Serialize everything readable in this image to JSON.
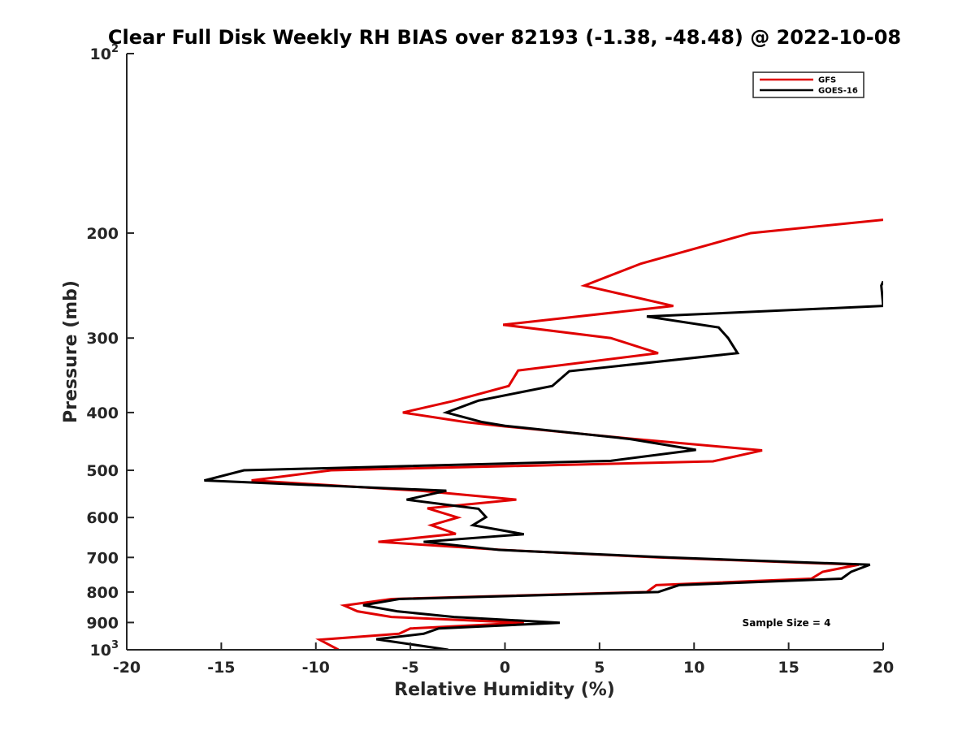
{
  "chart_data": {
    "type": "line",
    "title": "Clear Full Disk Weekly RH BIAS over 82193 (-1.38, -48.48) @ 2022-10-08",
    "xlabel": "Relative Humidity (%)",
    "ylabel": "Pressure (mb)",
    "xlim": [
      -20,
      20
    ],
    "ylim": [
      100,
      1000
    ],
    "y_scale": "log",
    "y_reversed": true,
    "x_ticks": [
      "-20",
      "-15",
      "-10",
      "-5",
      "0",
      "5",
      "10",
      "15",
      "20"
    ],
    "y_ticks": [
      {
        "value": 100,
        "base": "10",
        "exp": "2"
      },
      {
        "value": 200,
        "label": "200"
      },
      {
        "value": 300,
        "label": "300"
      },
      {
        "value": 400,
        "label": "400"
      },
      {
        "value": 500,
        "label": "500"
      },
      {
        "value": 600,
        "label": "600"
      },
      {
        "value": 700,
        "label": "700"
      },
      {
        "value": 800,
        "label": "800"
      },
      {
        "value": 900,
        "label": "900"
      },
      {
        "value": 1000,
        "base": "10",
        "exp": "3"
      }
    ],
    "grid": false,
    "legend_position": "top-right",
    "annotation": "Sample Size = 4",
    "series": [
      {
        "name": "GFS",
        "color": "#e00000",
        "points": [
          [
            20.0,
            190
          ],
          [
            13.0,
            200
          ],
          [
            7.2,
            225
          ],
          [
            4.2,
            245
          ],
          [
            8.9,
            265
          ],
          [
            -0.1,
            285
          ],
          [
            5.6,
            300
          ],
          [
            8.1,
            318
          ],
          [
            0.7,
            340
          ],
          [
            0.2,
            361
          ],
          [
            -2.8,
            383
          ],
          [
            -5.4,
            400
          ],
          [
            -2.1,
            415
          ],
          [
            0.0,
            422
          ],
          [
            6.5,
            442
          ],
          [
            13.6,
            463
          ],
          [
            11.0,
            483
          ],
          [
            -9.2,
            500
          ],
          [
            -13.4,
            520
          ],
          [
            -4.5,
            541
          ],
          [
            0.6,
            560
          ],
          [
            -4.1,
            579
          ],
          [
            -2.5,
            600
          ],
          [
            -3.9,
            618
          ],
          [
            -2.6,
            639
          ],
          [
            -6.7,
            659
          ],
          [
            -0.1,
            680
          ],
          [
            8.1,
            700
          ],
          [
            18.7,
            720
          ],
          [
            16.8,
            740
          ],
          [
            16.2,
            760
          ],
          [
            8.0,
            779
          ],
          [
            7.5,
            800
          ],
          [
            -6.0,
            822
          ],
          [
            -8.5,
            843
          ],
          [
            -7.8,
            862
          ],
          [
            -6.0,
            881
          ],
          [
            1.0,
            901
          ],
          [
            -5.0,
            921
          ],
          [
            -5.6,
            940
          ],
          [
            -9.8,
            962
          ],
          [
            -8.8,
            1000
          ]
        ]
      },
      {
        "name": "GOES-16",
        "color": "#000000",
        "points": [
          [
            20.0,
            241
          ],
          [
            19.9,
            245
          ],
          [
            20.0,
            265
          ],
          [
            7.5,
            276
          ],
          [
            11.3,
            288
          ],
          [
            11.8,
            300
          ],
          [
            12.3,
            318
          ],
          [
            3.4,
            341
          ],
          [
            2.5,
            361
          ],
          [
            -1.4,
            382
          ],
          [
            -3.1,
            400
          ],
          [
            -1.2,
            415
          ],
          [
            0.0,
            421
          ],
          [
            6.6,
            443
          ],
          [
            10.1,
            462
          ],
          [
            5.6,
            482
          ],
          [
            -13.8,
            500
          ],
          [
            -15.9,
            520
          ],
          [
            -3.1,
            541
          ],
          [
            -5.2,
            560
          ],
          [
            -1.4,
            580
          ],
          [
            -1.0,
            599
          ],
          [
            -1.7,
            618
          ],
          [
            1.0,
            640
          ],
          [
            -4.3,
            659
          ],
          [
            -0.3,
            680
          ],
          [
            8.6,
            700
          ],
          [
            19.3,
            720
          ],
          [
            18.3,
            740
          ],
          [
            17.8,
            760
          ],
          [
            9.2,
            779
          ],
          [
            8.1,
            800
          ],
          [
            -5.6,
            822
          ],
          [
            -7.5,
            842
          ],
          [
            -5.7,
            862
          ],
          [
            -2.7,
            881
          ],
          [
            2.9,
            901
          ],
          [
            -3.5,
            921
          ],
          [
            -4.3,
            940
          ],
          [
            -6.8,
            960
          ],
          [
            -3.0,
            1000
          ]
        ]
      }
    ]
  }
}
